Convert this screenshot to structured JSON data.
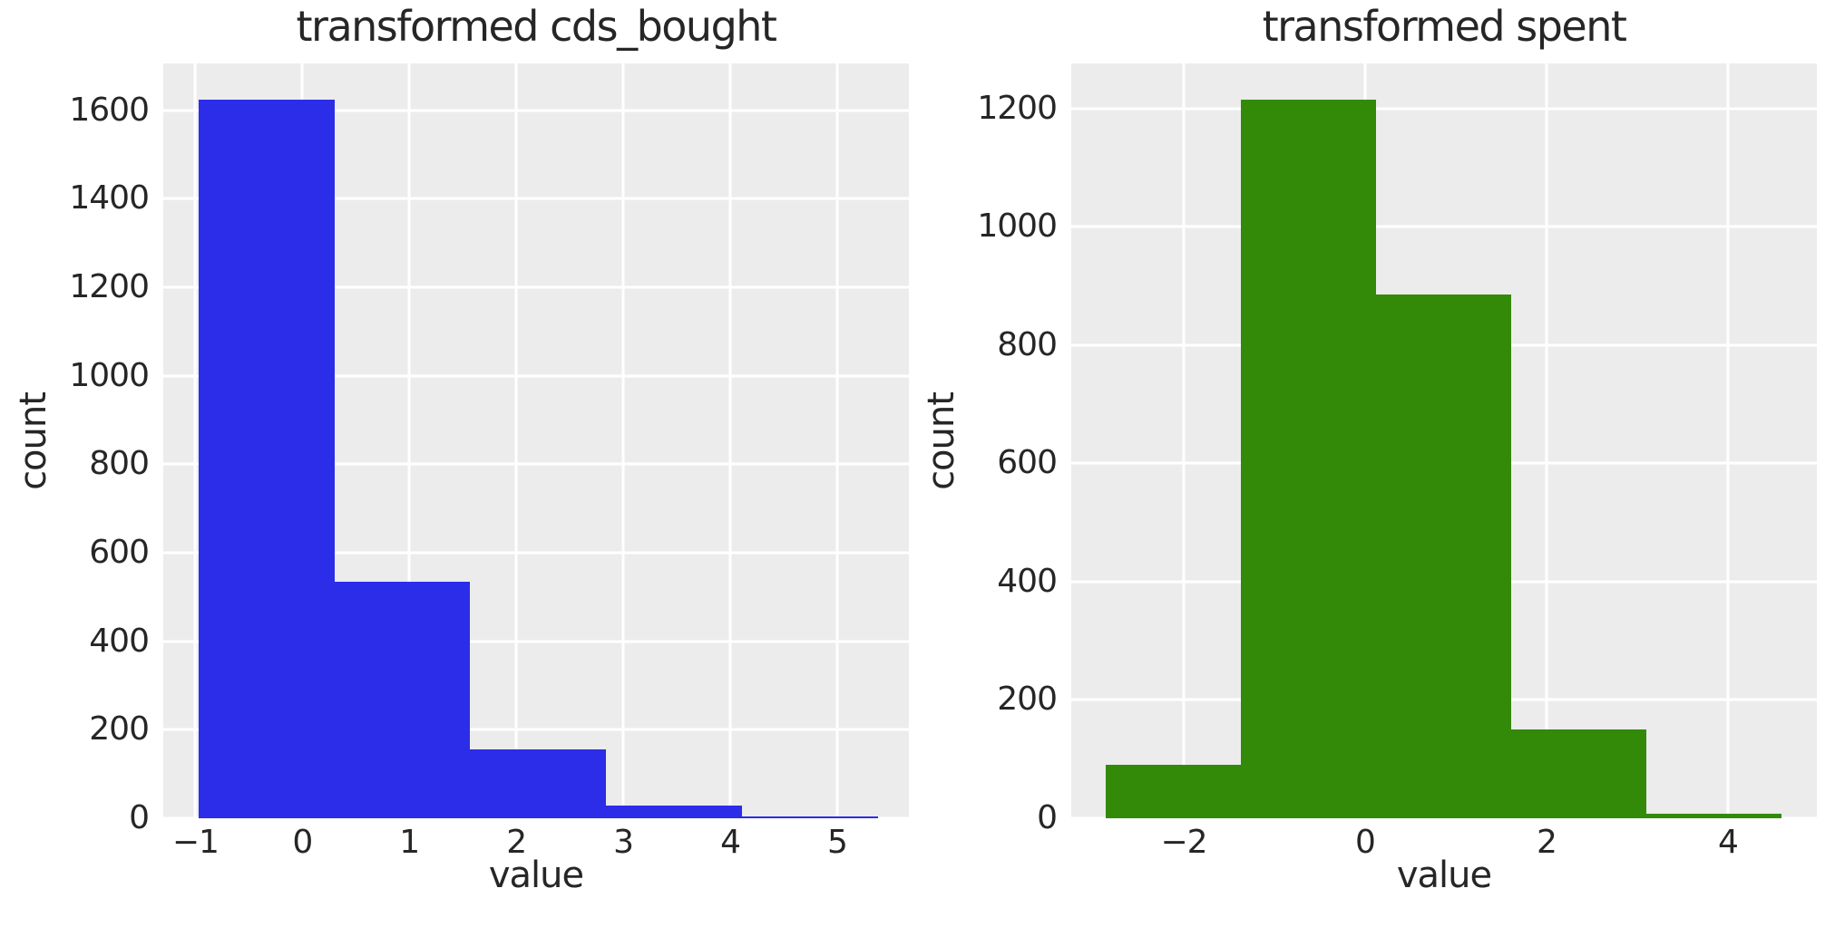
{
  "figure": {
    "background": "#ffffff",
    "plot_background": "#ececec",
    "grid_color": "#ffffff",
    "text_color": "#262626"
  },
  "chart_data": [
    {
      "type": "bar",
      "variant": "histogram",
      "title": "transformed cds_bought",
      "xlabel": "value",
      "ylabel": "count",
      "bar_color": "#2b2de9",
      "bin_edges": [
        -0.97,
        0.3,
        1.57,
        2.84,
        4.11,
        5.38
      ],
      "counts": [
        1625,
        535,
        155,
        28,
        5
      ],
      "xlim": [
        -1.3,
        5.67
      ],
      "ylim": [
        0,
        1706
      ],
      "grid": true,
      "legend_position": "none",
      "xticks": [
        {
          "v": -1,
          "label": "−1"
        },
        {
          "v": 0,
          "label": "0"
        },
        {
          "v": 1,
          "label": "1"
        },
        {
          "v": 2,
          "label": "2"
        },
        {
          "v": 3,
          "label": "3"
        },
        {
          "v": 4,
          "label": "4"
        },
        {
          "v": 5,
          "label": "5"
        }
      ],
      "yticks": [
        {
          "v": 0,
          "label": "0"
        },
        {
          "v": 200,
          "label": "200"
        },
        {
          "v": 400,
          "label": "400"
        },
        {
          "v": 600,
          "label": "600"
        },
        {
          "v": 800,
          "label": "800"
        },
        {
          "v": 1000,
          "label": "1000"
        },
        {
          "v": 1200,
          "label": "1200"
        },
        {
          "v": 1400,
          "label": "1400"
        },
        {
          "v": 1600,
          "label": "1600"
        }
      ]
    },
    {
      "type": "bar",
      "variant": "histogram",
      "title": "transformed spent",
      "xlabel": "value",
      "ylabel": "count",
      "bar_color": "#338a08",
      "bin_edges": [
        -2.86,
        -1.37,
        0.12,
        1.61,
        3.1,
        4.59
      ],
      "counts": [
        90,
        1215,
        885,
        150,
        8
      ],
      "xlim": [
        -3.24,
        4.98
      ],
      "ylim": [
        0,
        1276
      ],
      "grid": true,
      "legend_position": "none",
      "xticks": [
        {
          "v": -2,
          "label": "−2"
        },
        {
          "v": 0,
          "label": "0"
        },
        {
          "v": 2,
          "label": "2"
        },
        {
          "v": 4,
          "label": "4"
        }
      ],
      "yticks": [
        {
          "v": 0,
          "label": "0"
        },
        {
          "v": 200,
          "label": "200"
        },
        {
          "v": 400,
          "label": "400"
        },
        {
          "v": 600,
          "label": "600"
        },
        {
          "v": 800,
          "label": "800"
        },
        {
          "v": 1000,
          "label": "1000"
        },
        {
          "v": 1200,
          "label": "1200"
        }
      ]
    }
  ]
}
